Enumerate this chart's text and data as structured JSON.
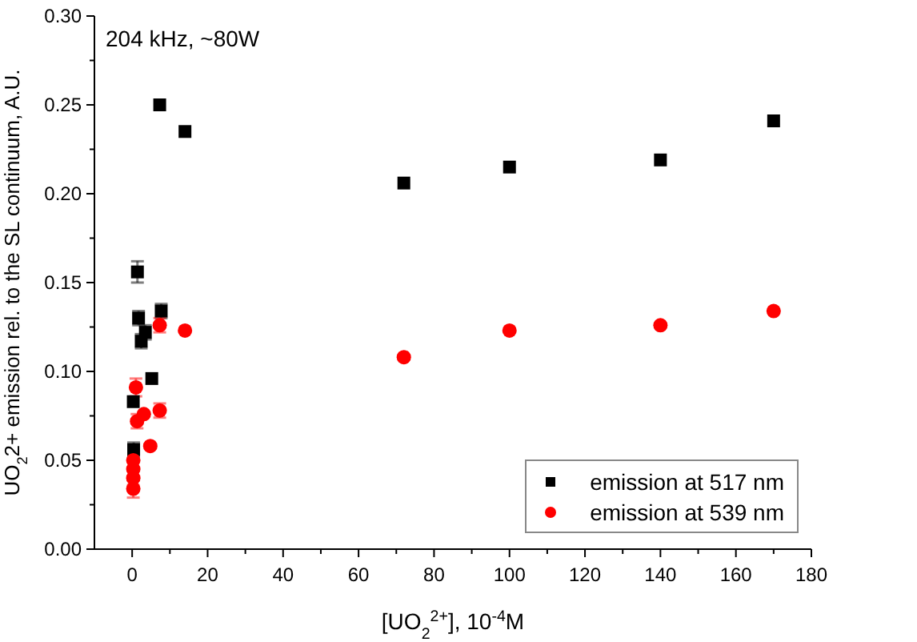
{
  "chart_data": {
    "type": "scatter",
    "xlabel": "[UO$_{2}$$^{2+}$], 10$^{-4}$M",
    "ylabel": "UO$_{2}$2+ emission rel. to the SL continuum, A.U.",
    "annotations": [
      "204 kHz, ~80W"
    ],
    "xlim": [
      -10,
      180
    ],
    "xticks": [
      0,
      {
        "value": 10,
        "label": null
      },
      20,
      {
        "value": 30,
        "label": null
      },
      40,
      {
        "value": 50,
        "label": null
      },
      60,
      {
        "value": 70,
        "label": null
      },
      80,
      {
        "value": 90,
        "label": null
      },
      100,
      {
        "value": 110,
        "label": null
      },
      120,
      {
        "value": 130,
        "label": null
      },
      140,
      {
        "value": 150,
        "label": null
      },
      160,
      {
        "value": 170,
        "label": null
      },
      180
    ],
    "ylim": [
      0,
      0.3
    ],
    "yticks": [
      {
        "value": 0,
        "label": "0.00"
      },
      {
        "value": 0.025,
        "label": null
      },
      {
        "value": 0.05,
        "label": "0.05"
      },
      {
        "value": 0.075,
        "label": null
      },
      {
        "value": 0.1,
        "label": "0.10"
      },
      {
        "value": 0.125,
        "label": null
      },
      {
        "value": 0.15,
        "label": "0.15"
      },
      {
        "value": 0.175,
        "label": null
      },
      {
        "value": 0.2,
        "label": "0.20"
      },
      {
        "value": 0.225,
        "label": null
      },
      {
        "value": 0.25,
        "label": "0.25"
      },
      {
        "value": 0.275,
        "label": null
      },
      {
        "value": 0.3,
        "label": "0.30"
      }
    ],
    "legend": "bottom right",
    "grid": false,
    "series": [
      {
        "name": "emission at 517 nm",
        "color": "#000000",
        "marker": "square",
        "x": [
          1.4,
          1.7,
          3.5,
          2.4,
          7.7,
          5.2,
          0.3,
          0.4,
          7.3,
          14,
          72,
          100,
          140,
          170
        ],
        "values": [
          0.156,
          0.13,
          0.122,
          0.117,
          0.134,
          0.096,
          0.083,
          0.056,
          0.25,
          0.235,
          0.206,
          0.215,
          0.219,
          0.241
        ],
        "errors": [
          0.006,
          0.004,
          0.004,
          0.004,
          0.004,
          null,
          null,
          0.004,
          null,
          null,
          null,
          null,
          null,
          null
        ]
      },
      {
        "name": "emission at 539 nm",
        "color": "#ff0000",
        "marker": "circle",
        "x": [
          7.3,
          14,
          1,
          1.3,
          3.1,
          7.3,
          4.8,
          0.3,
          0.3,
          0.3,
          0.3,
          72,
          100,
          140,
          170
        ],
        "values": [
          0.126,
          0.123,
          0.091,
          0.072,
          0.076,
          0.078,
          0.058,
          0.05,
          0.045,
          0.04,
          0.034,
          0.108,
          0.123,
          0.126,
          0.134
        ],
        "errors": [
          0.004,
          null,
          0.005,
          0.004,
          null,
          0.004,
          null,
          null,
          null,
          0.004,
          0.005,
          null,
          null,
          null,
          null
        ]
      }
    ]
  }
}
